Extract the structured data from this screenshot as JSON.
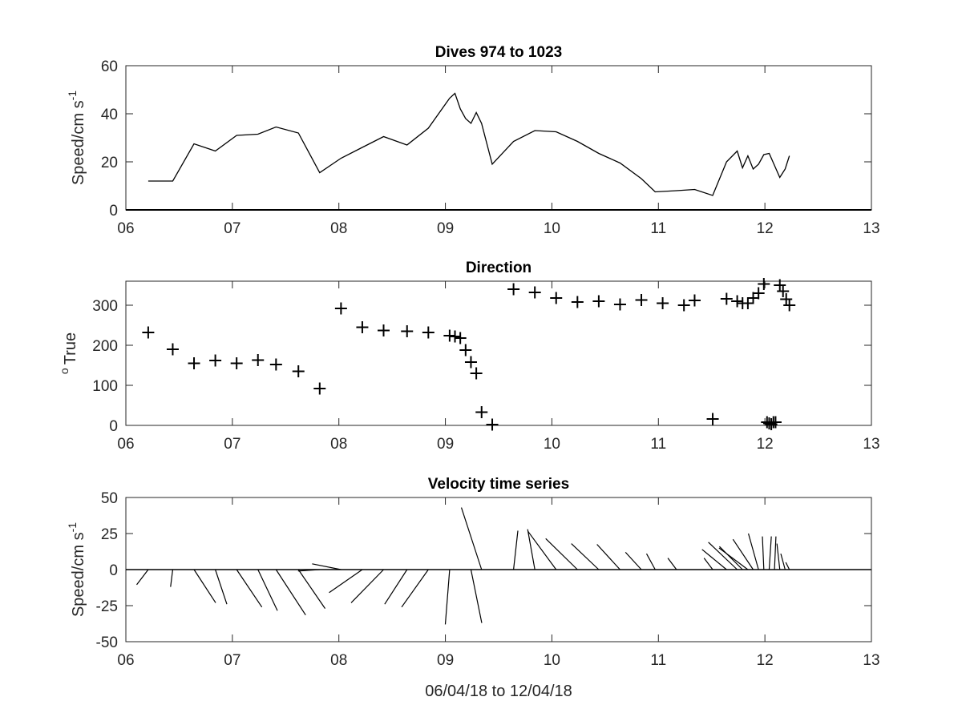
{
  "figure": {
    "xlabel": "06/04/18 to 12/04/18"
  },
  "colors": {
    "line": "#000000",
    "axes": "#262626",
    "background": "#ffffff"
  },
  "chart_data": [
    {
      "type": "line",
      "title": "Dives 974 to 1023",
      "ylabel": "Speed/cm s",
      "ylabel_superscript": "-1",
      "xlim": [
        6,
        13
      ],
      "ylim": [
        0,
        60
      ],
      "xticks": [
        "06",
        "07",
        "08",
        "09",
        "10",
        "11",
        "12",
        "13"
      ],
      "yticks": [
        "0",
        "20",
        "40",
        "60"
      ],
      "series": [
        {
          "x": [
            6.21,
            6.44,
            6.64,
            6.84,
            7.04,
            7.24,
            7.41,
            7.62,
            7.82,
            8.02,
            8.22,
            8.42,
            8.64,
            8.84,
            9.04,
            9.09,
            9.14,
            9.19,
            9.24,
            9.29,
            9.34,
            9.44,
            9.64,
            9.84,
            10.04,
            10.24,
            10.44,
            10.64,
            10.84,
            10.97,
            11.17,
            11.34,
            11.51,
            11.64,
            11.74,
            11.79,
            11.84,
            11.89,
            11.94,
            11.99,
            12.04,
            12.09,
            12.14,
            12.19,
            12.23
          ],
          "y": [
            12,
            12,
            27.5,
            24.5,
            31,
            31.5,
            34.5,
            32,
            15.5,
            21.5,
            26,
            30.5,
            27,
            34,
            46.5,
            48.5,
            42,
            38,
            36,
            40.5,
            36,
            19,
            28.5,
            33,
            32.5,
            28.5,
            23.5,
            19.5,
            13,
            7.5,
            8,
            8.5,
            6,
            20,
            24.5,
            17.5,
            22.5,
            17,
            19,
            23,
            23.5,
            18.5,
            13.5,
            17,
            22.5
          ]
        }
      ]
    },
    {
      "type": "scatter",
      "title": "Direction",
      "ylabel": "True",
      "ylabel_superscript": "o",
      "xlim": [
        6,
        13
      ],
      "ylim": [
        0,
        360
      ],
      "xticks": [
        "06",
        "07",
        "08",
        "09",
        "10",
        "11",
        "12",
        "13"
      ],
      "yticks": [
        "0",
        "100",
        "200",
        "300"
      ],
      "marker": "+",
      "series": [
        {
          "x": [
            6.21,
            6.44,
            6.64,
            6.84,
            7.04,
            7.24,
            7.41,
            7.62,
            7.82,
            8.02,
            8.22,
            8.42,
            8.64,
            8.84,
            9.04,
            9.09,
            9.14,
            9.19,
            9.24,
            9.29,
            9.34,
            9.44,
            9.64,
            9.84,
            10.04,
            10.24,
            10.44,
            10.64,
            10.84,
            11.04,
            11.24,
            11.34,
            11.51,
            11.64,
            11.74,
            11.79,
            11.84,
            11.89,
            11.94,
            11.99,
            12.02,
            12.04,
            12.06,
            12.08,
            12.1,
            12.14,
            12.17,
            12.2,
            12.23
          ],
          "y": [
            232,
            190,
            155,
            162,
            155,
            163,
            152,
            135,
            92,
            292,
            245,
            237,
            235,
            232,
            224,
            222,
            218,
            188,
            158,
            130,
            33,
            2,
            340,
            332,
            318,
            308,
            310,
            302,
            313,
            305,
            300,
            312,
            16,
            316,
            310,
            305,
            305,
            318,
            330,
            353,
            8,
            5,
            3,
            8,
            8,
            350,
            335,
            315,
            300
          ]
        }
      ]
    },
    {
      "type": "stick",
      "title": "Velocity time series",
      "ylabel": "Speed/cm s",
      "ylabel_superscript": "-1",
      "xlim": [
        6,
        13
      ],
      "ylim": [
        -50,
        50
      ],
      "xticks": [
        "06",
        "07",
        "08",
        "09",
        "10",
        "11",
        "12",
        "13"
      ],
      "yticks": [
        "50",
        "25",
        "0",
        "-25",
        "-50"
      ],
      "series": [
        {
          "x": [
            6.21,
            6.44,
            6.64,
            6.84,
            7.04,
            7.24,
            7.41,
            7.62,
            7.82,
            8.02,
            8.22,
            8.42,
            8.64,
            8.84,
            9.04,
            9.24,
            9.34,
            9.64,
            9.84,
            10.04,
            10.24,
            10.44,
            10.64,
            10.84,
            10.97,
            11.17,
            11.51,
            11.64,
            11.74,
            11.79,
            11.84,
            11.89,
            11.94,
            11.99,
            12.04,
            12.09,
            12.14,
            12.19,
            12.23
          ],
          "u": [
            -8,
            -1.5,
            15,
            8,
            17.5,
            13.5,
            20.5,
            18.5,
            -15,
            -20,
            -23,
            -22.5,
            -15.5,
            -18.5,
            -3,
            7.5,
            -14,
            3,
            -5,
            -19.5,
            -22,
            -19,
            -16,
            -11,
            -6,
            -6,
            -6,
            -17,
            -20,
            -16,
            -20,
            -14,
            -7,
            -1,
            1.5,
            1,
            -2,
            -3,
            -2.5
          ],
          "v": [
            -10.5,
            -12,
            -23,
            -24,
            -26,
            -28.5,
            -31.5,
            -27,
            -1,
            4,
            -16,
            -23,
            -24,
            -26,
            -38,
            -37,
            43,
            27,
            28,
            26.5,
            21.5,
            18,
            17.5,
            12,
            11,
            8,
            8,
            14,
            19,
            16,
            15,
            21,
            25,
            23,
            23,
            23,
            18,
            11,
            5
          ]
        }
      ]
    }
  ]
}
